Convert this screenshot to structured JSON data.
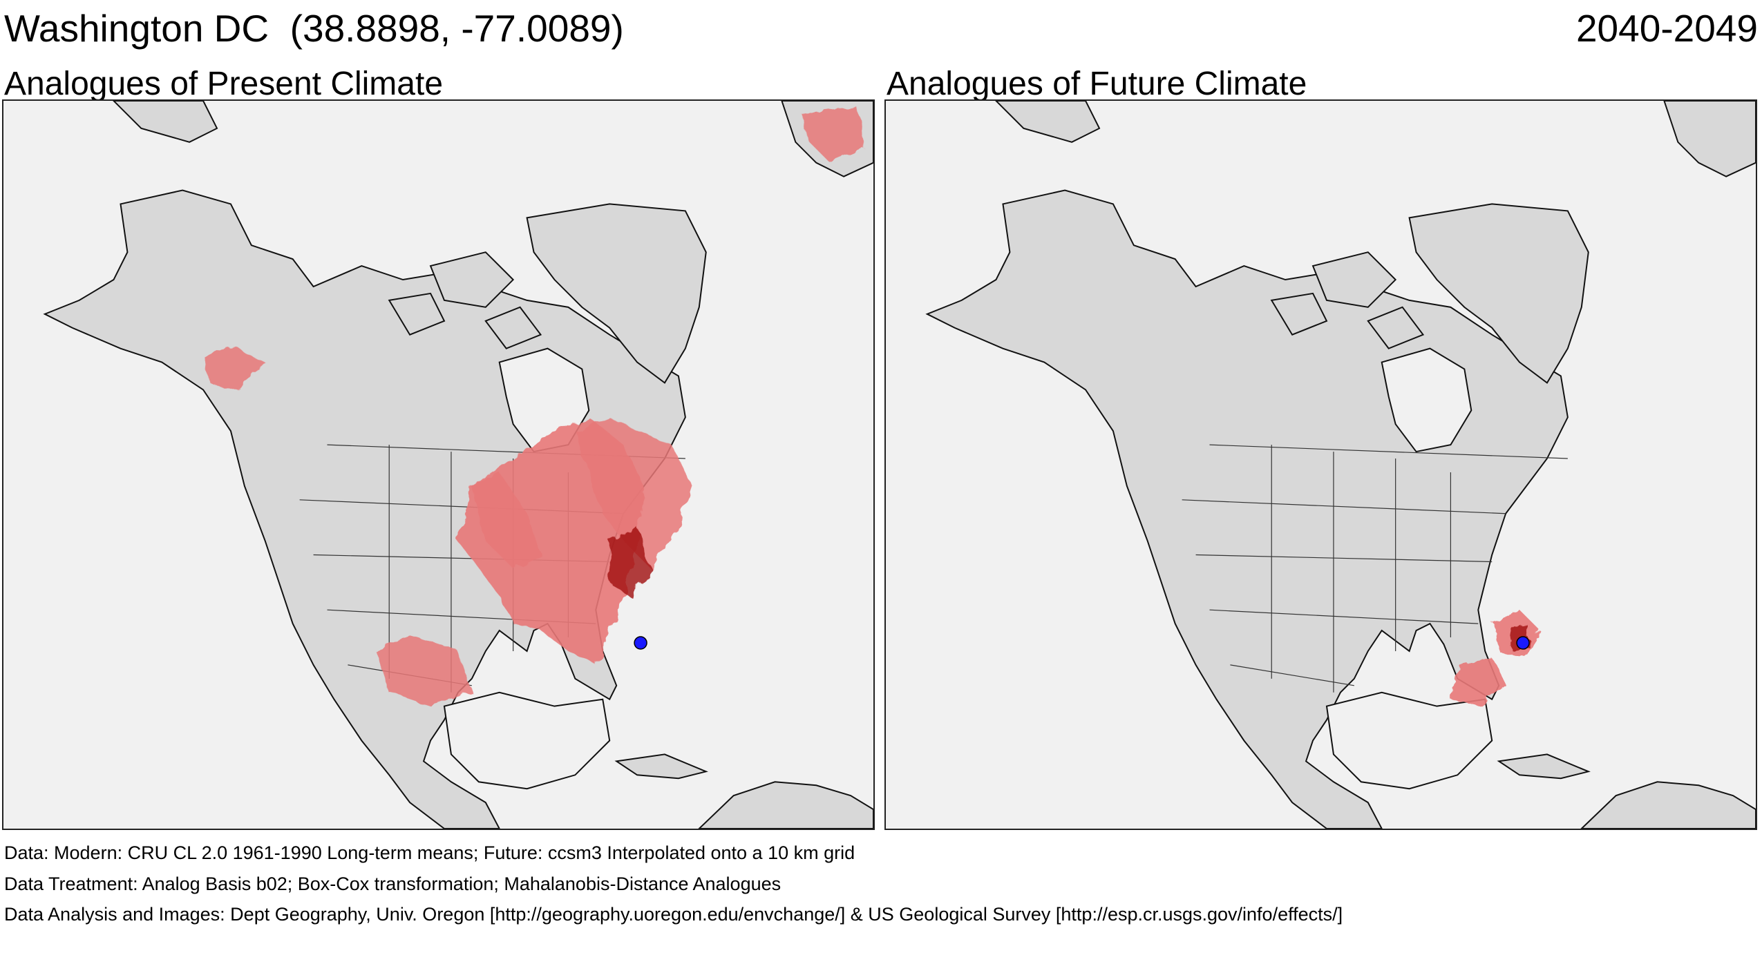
{
  "header": {
    "location": "Washington DC  (38.8898, -77.0089)",
    "period": "2040-2049"
  },
  "panels": [
    {
      "title": "Analogues of Present Climate",
      "analogue_color": "#e87878",
      "strong_color": "#a01010"
    },
    {
      "title": "Analogues of Future Climate",
      "analogue_color": "#e87878",
      "strong_color": "#a01010"
    }
  ],
  "marker_color": "#1a1aff",
  "land_color": "#d8d8d8",
  "ocean_color": "#f1f1f1",
  "footer": {
    "line1": "Data:  Modern: CRU CL 2.0 1961-1990 Long-term means; Future: ccsm3 Interpolated onto a 10 km grid",
    "line2": "Data Treatment:  Analog Basis b02; Box-Cox transformation; Mahalanobis-Distance Analogues",
    "line3": "Data Analysis and Images:  Dept Geography, Univ. Oregon [http://geography.uoregon.edu/envchange/] & US Geological Survey [http://esp.cr.usgs.gov/info/effects/]"
  }
}
